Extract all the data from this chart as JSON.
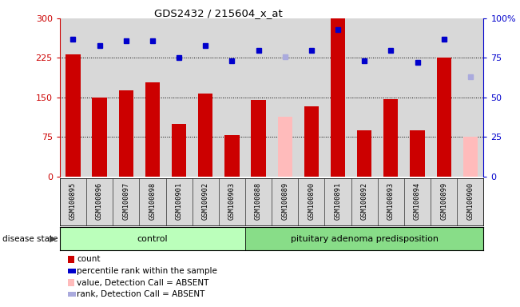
{
  "title": "GDS2432 / 215604_x_at",
  "samples": [
    "GSM100895",
    "GSM100896",
    "GSM100897",
    "GSM100898",
    "GSM100901",
    "GSM100902",
    "GSM100903",
    "GSM100888",
    "GSM100889",
    "GSM100890",
    "GSM100891",
    "GSM100892",
    "GSM100893",
    "GSM100894",
    "GSM100899",
    "GSM100900"
  ],
  "bar_values": [
    232,
    150,
    163,
    178,
    100,
    157,
    78,
    145,
    null,
    133,
    300,
    88,
    147,
    88,
    225,
    null
  ],
  "bar_absent_values": [
    null,
    null,
    null,
    null,
    null,
    null,
    null,
    null,
    113,
    null,
    null,
    null,
    null,
    null,
    null,
    75
  ],
  "rank_values": [
    87,
    83,
    86,
    86,
    75,
    83,
    73,
    80,
    null,
    80,
    93,
    73,
    80,
    72,
    87,
    null
  ],
  "rank_absent_values": [
    null,
    null,
    null,
    null,
    null,
    null,
    null,
    null,
    76,
    null,
    null,
    null,
    null,
    null,
    null,
    63
  ],
  "group_labels": [
    "control",
    "pituitary adenoma predisposition"
  ],
  "group_control_count": 7,
  "group_disease_count": 9,
  "ylim_left": [
    0,
    300
  ],
  "ylim_right": [
    0,
    100
  ],
  "yticks_left": [
    0,
    75,
    150,
    225,
    300
  ],
  "ytick_labels_left": [
    "0",
    "75",
    "150",
    "225",
    "300"
  ],
  "yticks_right": [
    0,
    25,
    50,
    75,
    100
  ],
  "ytick_labels_right": [
    "0",
    "25",
    "50",
    "75",
    "100%"
  ],
  "hlines": [
    75,
    150,
    225
  ],
  "bg_color": "#d8d8d8",
  "bar_color": "#cc0000",
  "bar_absent_color": "#ffbbbb",
  "rank_color": "#0000cc",
  "rank_absent_color": "#aaaadd",
  "bar_width": 0.55,
  "marker_size": 5,
  "disease_state_label": "disease state",
  "legend_items": [
    {
      "label": "count",
      "color": "#cc0000"
    },
    {
      "label": "percentile rank within the sample",
      "color": "#0000cc"
    },
    {
      "label": "value, Detection Call = ABSENT",
      "color": "#ffbbbb"
    },
    {
      "label": "rank, Detection Call = ABSENT",
      "color": "#aaaadd"
    }
  ]
}
